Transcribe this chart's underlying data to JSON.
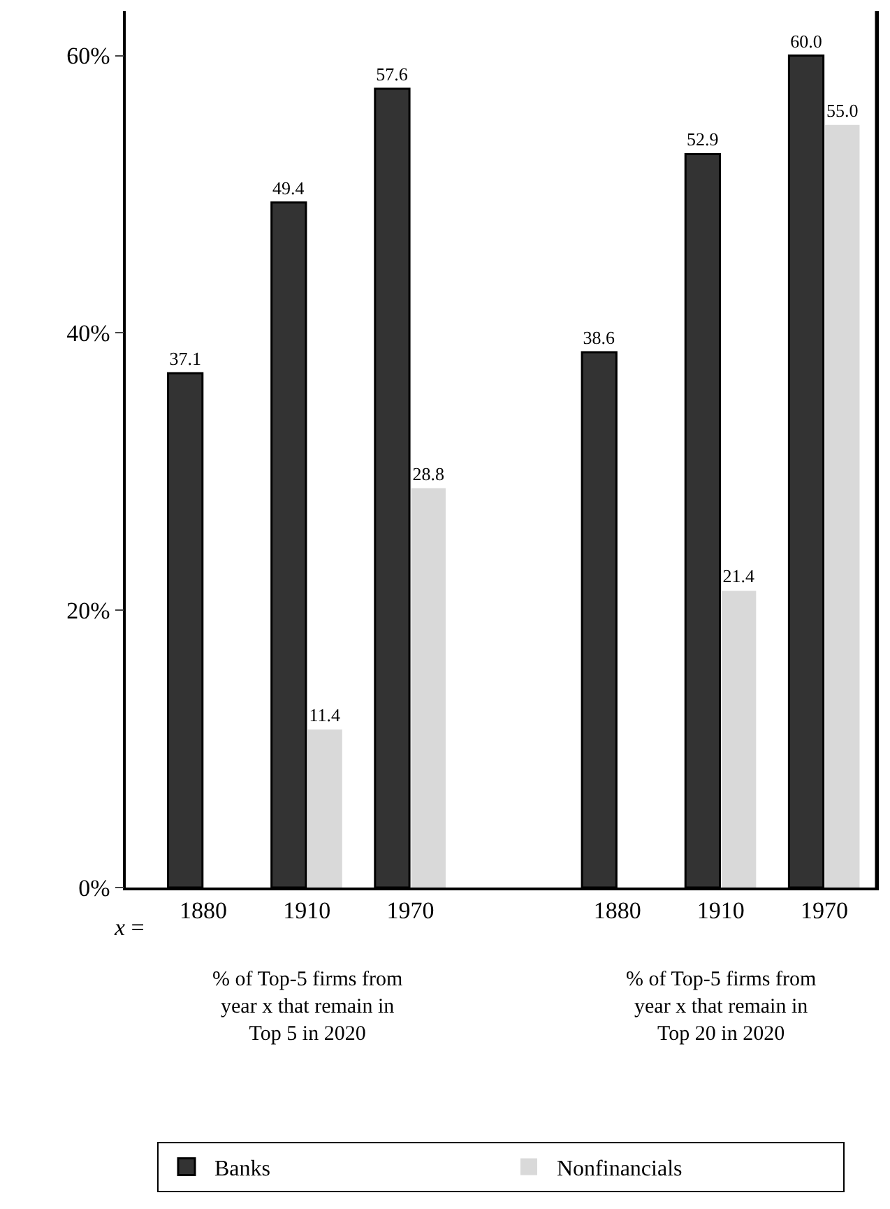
{
  "chart_data": {
    "type": "bar",
    "categories": [
      "1880",
      "1910",
      "1970",
      null,
      "1880",
      "1910",
      "1970"
    ],
    "series": [
      {
        "name": "Banks",
        "color": "#333333",
        "values": [
          37.1,
          49.4,
          57.6,
          null,
          38.6,
          52.9,
          60.0
        ],
        "value_labels": [
          "37.1",
          "49.4",
          "57.6",
          null,
          "38.6",
          "52.9",
          "60.0"
        ]
      },
      {
        "name": "Nonfinancials",
        "color": "#d9d9d9",
        "values": [
          null,
          11.4,
          28.8,
          null,
          null,
          21.4,
          55.0
        ],
        "value_labels": [
          null,
          "11.4",
          "28.8",
          null,
          null,
          "21.4",
          "55.0"
        ]
      }
    ],
    "ylim": [
      0,
      63.2
    ],
    "yticks": [
      {
        "value": 0,
        "label": "0%"
      },
      {
        "value": 20,
        "label": "20%"
      },
      {
        "value": 40,
        "label": "40%"
      },
      {
        "value": 60,
        "label": "60%"
      }
    ],
    "legend": "bottom",
    "annotations": [
      "x =",
      "% of Top-5 firms from year x that remain in Top 5 in 2020",
      "% of Top-5 firms from year x that remain in Top 20 in 2020"
    ]
  }
}
